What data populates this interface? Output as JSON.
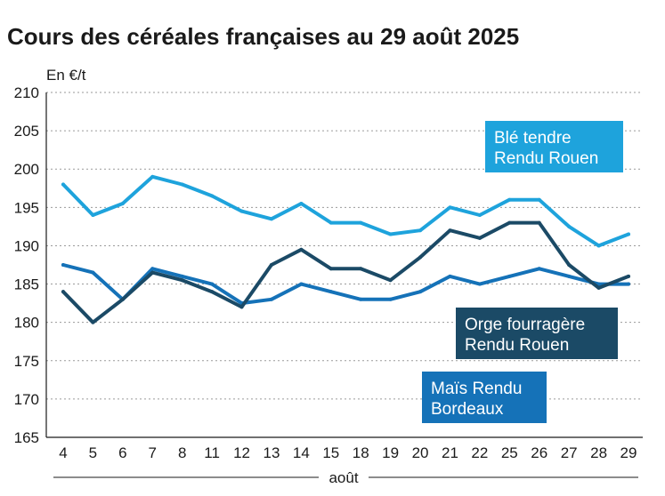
{
  "chart_data": {
    "type": "line",
    "title": "Cours des céréales françaises au 29 août 2025",
    "ylabel": "En €/t",
    "xlabel": "août",
    "ylim": [
      165,
      210
    ],
    "yticks": [
      165,
      170,
      175,
      180,
      185,
      190,
      195,
      200,
      205,
      210
    ],
    "categories": [
      "4",
      "5",
      "6",
      "7",
      "8",
      "11",
      "12",
      "13",
      "14",
      "15",
      "18",
      "19",
      "20",
      "21",
      "22",
      "25",
      "26",
      "27",
      "28",
      "29"
    ],
    "grid": true,
    "series": [
      {
        "name": "Blé tendre Rendu Rouen",
        "label_lines": [
          "Blé tendre",
          "Rendu Rouen"
        ],
        "color": "#1ea3dc",
        "values": [
          198,
          194,
          195.5,
          199,
          198,
          196.5,
          194.5,
          193.5,
          195.5,
          193,
          193,
          191.5,
          192,
          195,
          194,
          196,
          196,
          192.5,
          190,
          191.5
        ]
      },
      {
        "name": "Orge fourragère Rendu Rouen",
        "label_lines": [
          "Orge fourragère",
          "Rendu Rouen"
        ],
        "color": "#1b4a66",
        "values": [
          184,
          180,
          183,
          186.5,
          185.5,
          184,
          182,
          187.5,
          189.5,
          187,
          187,
          185.5,
          188.5,
          192,
          191,
          193,
          193,
          187.5,
          184.5,
          186
        ]
      },
      {
        "name": "Maïs Rendu Bordeaux",
        "label_lines": [
          "Maïs Rendu",
          "Bordeaux"
        ],
        "color": "#1572b8",
        "values": [
          187.5,
          186.5,
          183,
          187,
          186,
          185,
          182.5,
          183,
          185,
          184,
          183,
          183,
          184,
          186,
          185,
          186,
          187,
          186,
          185,
          185
        ]
      }
    ]
  }
}
